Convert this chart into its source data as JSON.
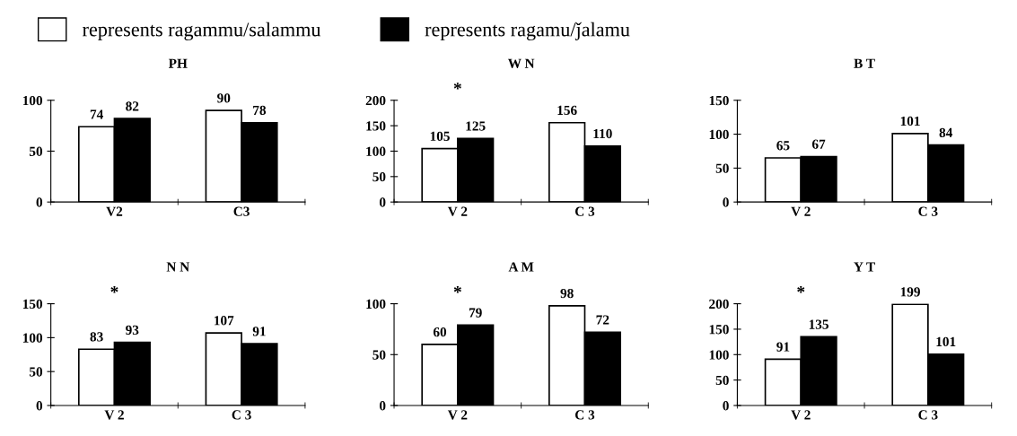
{
  "chart_data": [
    {
      "type": "bar",
      "title": "PH",
      "categories": [
        "V2",
        "C3"
      ],
      "legend": "top",
      "data_labels": true,
      "ylim": [
        0,
        100
      ],
      "yticks": [
        0,
        50,
        100
      ],
      "series": [
        {
          "name": "represents ragammu/salammu",
          "color": "#ffffff",
          "values": [
            74,
            90
          ]
        },
        {
          "name": "represents ragamu/ǰalamu",
          "color": "#000000",
          "values": [
            82,
            78
          ]
        }
      ]
    },
    {
      "type": "bar",
      "title": "W N",
      "categories": [
        "V 2",
        "C 3"
      ],
      "data_labels": true,
      "ylim": [
        0,
        200
      ],
      "yticks": [
        0,
        50,
        100,
        150,
        200
      ],
      "annotations": [
        "*"
      ],
      "series": [
        {
          "color": "#ffffff",
          "values": [
            105,
            156
          ]
        },
        {
          "color": "#000000",
          "values": [
            125,
            110
          ]
        }
      ]
    },
    {
      "type": "bar",
      "title": "B T",
      "categories": [
        "V 2",
        "C 3"
      ],
      "data_labels": true,
      "ylim": [
        0,
        150
      ],
      "yticks": [
        0,
        50,
        100,
        150
      ],
      "series": [
        {
          "color": "#ffffff",
          "values": [
            65,
            101
          ]
        },
        {
          "color": "#000000",
          "values": [
            67,
            84
          ]
        }
      ]
    },
    {
      "type": "bar",
      "title": "N N",
      "categories": [
        "V 2",
        "C 3"
      ],
      "data_labels": true,
      "ylim": [
        0,
        150
      ],
      "yticks": [
        0,
        50,
        100,
        150
      ],
      "annotations": [
        "*"
      ],
      "series": [
        {
          "color": "#ffffff",
          "values": [
            83,
            107
          ]
        },
        {
          "color": "#000000",
          "values": [
            93,
            91
          ]
        }
      ]
    },
    {
      "type": "bar",
      "title": "A M",
      "categories": [
        "V 2",
        "C 3"
      ],
      "data_labels": true,
      "ylim": [
        0,
        100
      ],
      "yticks": [
        0,
        50,
        100
      ],
      "annotations": [
        "*"
      ],
      "series": [
        {
          "color": "#ffffff",
          "values": [
            60,
            98
          ]
        },
        {
          "color": "#000000",
          "values": [
            79,
            72
          ]
        }
      ]
    },
    {
      "type": "bar",
      "title": "Y T",
      "categories": [
        "V 2",
        "C 3"
      ],
      "data_labels": true,
      "ylim": [
        0,
        200
      ],
      "yticks": [
        0,
        50,
        100,
        150,
        200
      ],
      "annotations": [
        "*"
      ],
      "series": [
        {
          "color": "#ffffff",
          "values": [
            91,
            199
          ]
        },
        {
          "color": "#000000",
          "values": [
            135,
            101
          ]
        }
      ]
    }
  ]
}
